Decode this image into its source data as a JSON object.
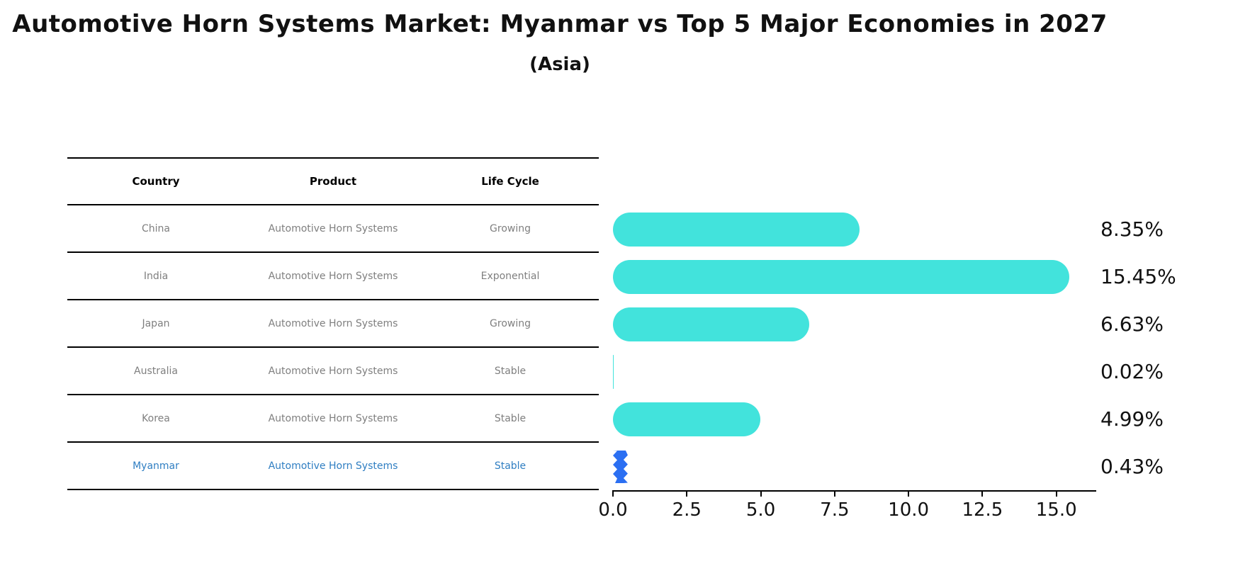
{
  "title": "Automotive Horn Systems Market: Myanmar vs Top 5 Major Economies in 2027",
  "subtitle": "(Asia)",
  "table": {
    "headers": [
      "Country",
      "Product",
      "Life Cycle"
    ],
    "rows": [
      {
        "country": "China",
        "product": "Automotive Horn Systems",
        "life_cycle": "Growing",
        "highlight": false
      },
      {
        "country": "India",
        "product": "Automotive Horn Systems",
        "life_cycle": "Exponential",
        "highlight": false
      },
      {
        "country": "Japan",
        "product": "Automotive Horn Systems",
        "life_cycle": "Growing",
        "highlight": false
      },
      {
        "country": "Australia",
        "product": "Automotive Horn Systems",
        "life_cycle": "Stable",
        "highlight": false
      },
      {
        "country": "Korea",
        "product": "Automotive Horn Systems",
        "life_cycle": "Stable",
        "highlight": false
      },
      {
        "country": "Myanmar",
        "product": "Automotive Horn Systems",
        "life_cycle": "Stable",
        "highlight": true
      }
    ]
  },
  "chart_data": {
    "type": "bar",
    "orientation": "horizontal",
    "title": "Automotive Horn Systems Market: Myanmar vs Top 5 Major Economies in 2027 (Asia)",
    "categories": [
      "China",
      "India",
      "Japan",
      "Australia",
      "Korea",
      "Myanmar"
    ],
    "values": [
      8.35,
      15.45,
      6.63,
      0.02,
      4.99,
      0.43
    ],
    "value_labels": [
      "8.35%",
      "15.45%",
      "6.63%",
      "0.02%",
      "4.99%",
      "0.43%"
    ],
    "x_ticks": [
      0.0,
      2.5,
      5.0,
      7.5,
      10.0,
      12.5,
      15.0
    ],
    "x_tick_labels": [
      "0.0",
      "2.5",
      "5.0",
      "7.5",
      "10.0",
      "12.5",
      "15.0"
    ],
    "xlim": [
      0,
      16.35
    ],
    "grid": false,
    "legend": "none",
    "bar_color": "#42e3dc",
    "highlight_color": "#2b6ff2",
    "highlight_index": 5
  },
  "colors": {
    "bar": "#42e3dc",
    "highlight_bar": "#2b6ff2",
    "highlight_text": "#2f7ec2",
    "table_text": "#7f7f7f",
    "axis_text": "#111111"
  }
}
